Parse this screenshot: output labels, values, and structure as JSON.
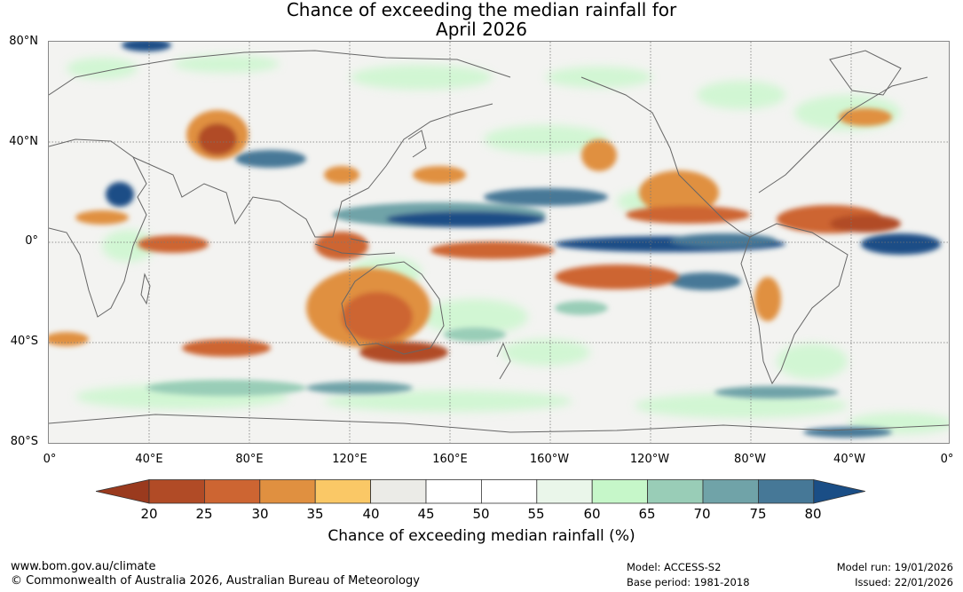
{
  "title": {
    "line1": "Chance of exceeding the median rainfall for",
    "line2": "April 2026"
  },
  "map": {
    "lat_labels": [
      "80°N",
      "40°N",
      "0°",
      "40°S",
      "80°S"
    ],
    "lon_labels": [
      "0°",
      "40°E",
      "80°E",
      "120°E",
      "160°E",
      "160°W",
      "120°W",
      "80°W",
      "40°W",
      "0°"
    ]
  },
  "colorbar": {
    "ticks": [
      "20",
      "25",
      "30",
      "35",
      "40",
      "45",
      "50",
      "55",
      "60",
      "65",
      "70",
      "75",
      "80"
    ],
    "colors": [
      "#9a3a1e",
      "#b14b26",
      "#cd6532",
      "#e09040",
      "#fac866",
      "#ebebe7",
      "#ffffff",
      "#ffffff",
      "#eaf6ea",
      "#c6f7c9",
      "#99cdb7",
      "#70a3a8",
      "#467897",
      "#1a4e86"
    ],
    "title": "Chance of exceeding median rainfall (%)"
  },
  "footer": {
    "website": "www.bom.gov.au/climate",
    "copyright": "© Commonwealth of Australia 2026, Australian Bureau of Meteorology",
    "model": "Model: ACCESS-S2",
    "base_period": "Base period: 1981-2018",
    "model_run": "Model run: 19/01/2026",
    "issued": "Issued: 22/01/2026"
  }
}
